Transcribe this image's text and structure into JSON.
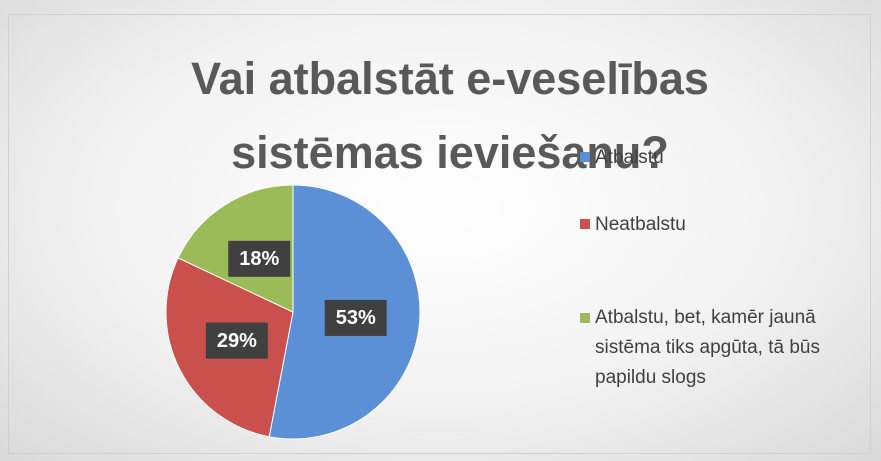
{
  "chart_data": {
    "type": "pie",
    "title": "Vai atbalstāt e-veselības sistēmas ieviešanu?",
    "categories": [
      "Atbalstu",
      "Neatbalstu",
      "Atbalstu, bet, kamēr jaunā sistēma tiks apgūta, tā būs papildu slogs"
    ],
    "values": [
      53,
      29,
      18
    ],
    "value_labels": [
      "53%",
      "29%",
      "18%"
    ],
    "colors": [
      "#5b8fd6",
      "#c9504d",
      "#9bbb59"
    ],
    "legend": "right"
  }
}
